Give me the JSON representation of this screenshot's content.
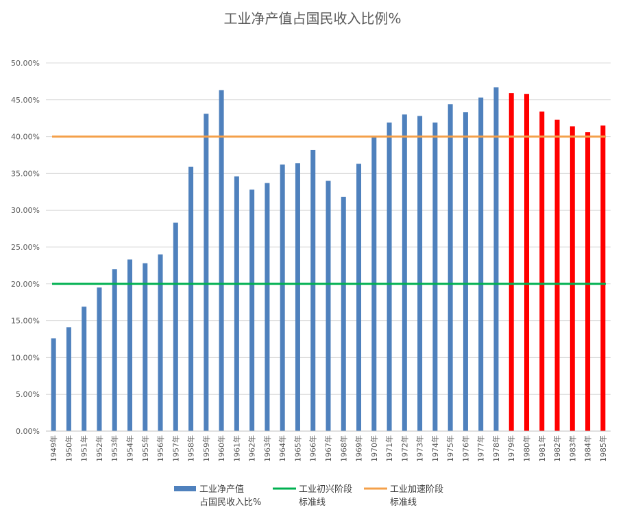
{
  "chart_data": {
    "type": "bar",
    "title": "工业净产值占国民收入比例%",
    "categories": [
      "1949年",
      "1950年",
      "1951年",
      "1952年",
      "1953年",
      "1954年",
      "1955年",
      "1956年",
      "1957年",
      "1958年",
      "1959年",
      "1960年",
      "1961年",
      "1962年",
      "1963年",
      "1964年",
      "1965年",
      "1966年",
      "1967年",
      "1968年",
      "1969年",
      "1970年",
      "1971年",
      "1972年",
      "1973年",
      "1974年",
      "1975年",
      "1976年",
      "1977年",
      "1978年",
      "1979年",
      "1980年",
      "1981年",
      "1982年",
      "1983年",
      "1984年",
      "1985年"
    ],
    "values": [
      0.126,
      0.141,
      0.169,
      0.195,
      0.22,
      0.233,
      0.228,
      0.24,
      0.283,
      0.359,
      0.431,
      0.463,
      0.346,
      0.328,
      0.337,
      0.362,
      0.364,
      0.382,
      0.34,
      0.318,
      0.363,
      0.4,
      0.419,
      0.43,
      0.428,
      0.419,
      0.444,
      0.433,
      0.453,
      0.467,
      0.459,
      0.458,
      0.434,
      0.423,
      0.414,
      0.406,
      0.415
    ],
    "bar_colors_by_category": [
      "#4f81bd",
      "#4f81bd",
      "#4f81bd",
      "#4f81bd",
      "#4f81bd",
      "#4f81bd",
      "#4f81bd",
      "#4f81bd",
      "#4f81bd",
      "#4f81bd",
      "#4f81bd",
      "#4f81bd",
      "#4f81bd",
      "#4f81bd",
      "#4f81bd",
      "#4f81bd",
      "#4f81bd",
      "#4f81bd",
      "#4f81bd",
      "#4f81bd",
      "#4f81bd",
      "#4f81bd",
      "#4f81bd",
      "#4f81bd",
      "#4f81bd",
      "#4f81bd",
      "#4f81bd",
      "#4f81bd",
      "#4f81bd",
      "#4f81bd",
      "#ff0000",
      "#ff0000",
      "#ff0000",
      "#ff0000",
      "#ff0000",
      "#ff0000",
      "#ff0000"
    ],
    "reference_lines": [
      {
        "value": 0.2,
        "color": "#00b050",
        "legend_line1": "工业初兴阶段",
        "legend_line2": "标准线"
      },
      {
        "value": 0.4,
        "color": "#f4a04a",
        "legend_line1": "工业加速阶段",
        "legend_line2": "标准线"
      }
    ],
    "series_legend": {
      "line1": "工业净产值",
      "line2": "占国民收入比%",
      "color": "#4f81bd"
    },
    "y_ticks": [
      "0.00%",
      "5.00%",
      "10.00%",
      "15.00%",
      "20.00%",
      "25.00%",
      "30.00%",
      "35.00%",
      "40.00%",
      "45.00%",
      "50.00%"
    ],
    "ylim": [
      0,
      0.5
    ],
    "grid": true,
    "legend_position": "bottom"
  }
}
